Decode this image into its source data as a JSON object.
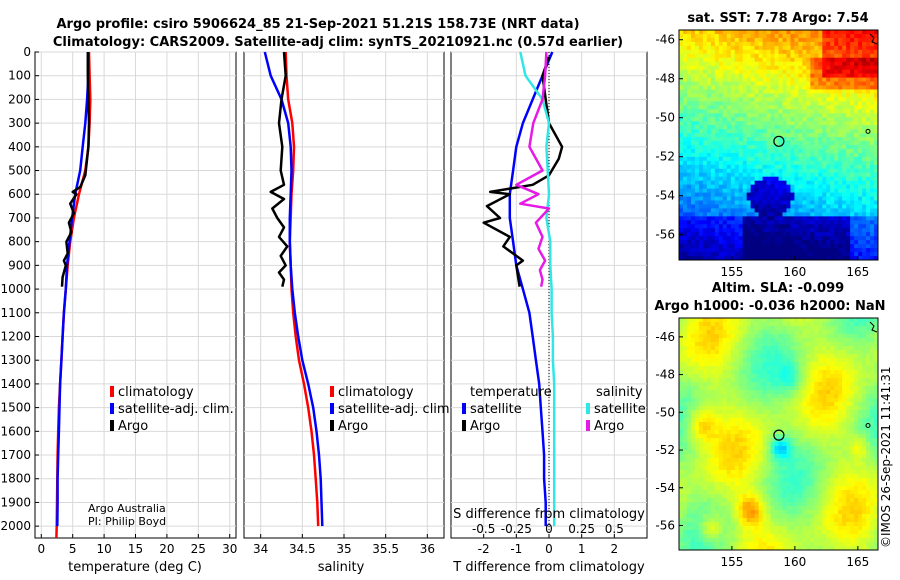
{
  "header": {
    "title_line1": "Argo profile: csiro 5906624_85 21-Sep-2021 51.21S 158.73E (NRT data)",
    "title_line2": "Climatology: CARS2009. Satellite-adj clim: synTS_20210921.nc (0.57d earlier)"
  },
  "credits": {
    "line1": "Argo Australia",
    "line2": "PI: Philip Boyd",
    "watermark": "©IMOS 26-Sep-2021 11:41:31"
  },
  "colors": {
    "climatology": "#ff0000",
    "satellite": "#0000ff",
    "argo": "#000000",
    "sat_salinity": "#33e6e6",
    "argo_salinity": "#e619e6"
  },
  "chart_data": [
    {
      "type": "line",
      "id": "temperature",
      "xlabel": "temperature (deg C)",
      "ylabel": "",
      "xlim": [
        -1,
        31
      ],
      "ylim": [
        2050,
        0
      ],
      "xticks": [
        0,
        5,
        10,
        15,
        20,
        25,
        30
      ],
      "yticks": [
        0,
        100,
        200,
        300,
        400,
        500,
        600,
        700,
        800,
        900,
        1000,
        1100,
        1200,
        1300,
        1400,
        1500,
        1600,
        1700,
        1800,
        1900,
        2000
      ],
      "grid": true,
      "legend": {
        "position": "lower-right",
        "entries": [
          "climatology",
          "satellite-adj. clim.",
          "Argo"
        ]
      },
      "series": [
        {
          "name": "climatology",
          "color": "#ff0000",
          "x": [
            7.6,
            7.7,
            7.8,
            7.7,
            7.5,
            7.0,
            6.0,
            5.2,
            4.6,
            4.2,
            3.9,
            3.6,
            3.4,
            3.2,
            3.0,
            2.8,
            2.7,
            2.6,
            2.55,
            2.5,
            2.45,
            2.4
          ],
          "y": [
            0,
            100,
            200,
            300,
            400,
            500,
            600,
            700,
            800,
            900,
            1000,
            1100,
            1200,
            1300,
            1400,
            1500,
            1600,
            1700,
            1800,
            1900,
            2000,
            2050
          ]
        },
        {
          "name": "satellite-adj. clim.",
          "color": "#0000ff",
          "x": [
            7.5,
            7.5,
            7.3,
            7.0,
            6.6,
            6.2,
            5.4,
            4.9,
            4.5,
            4.1,
            3.9,
            3.6,
            3.4,
            3.2,
            3.0,
            2.9,
            2.8,
            2.7,
            2.6,
            2.6,
            2.55
          ],
          "y": [
            0,
            100,
            200,
            300,
            400,
            500,
            600,
            700,
            800,
            900,
            1000,
            1100,
            1200,
            1300,
            1400,
            1500,
            1600,
            1700,
            1800,
            1900,
            2000
          ]
        },
        {
          "name": "Argo",
          "color": "#000000",
          "x": [
            7.4,
            7.4,
            7.5,
            7.6,
            7.5,
            7.3,
            7.0,
            6.2,
            5.0,
            5.6,
            4.6,
            5.2,
            4.4,
            4.8,
            4.0,
            4.2,
            3.6,
            3.9,
            3.4,
            3.3
          ],
          "y": [
            0,
            100,
            200,
            300,
            400,
            450,
            520,
            570,
            590,
            600,
            640,
            680,
            720,
            760,
            800,
            850,
            880,
            900,
            950,
            990
          ]
        }
      ]
    },
    {
      "type": "line",
      "id": "salinity",
      "xlabel": "salinity",
      "xlim": [
        33.8,
        36.2
      ],
      "ylim": [
        2050,
        0
      ],
      "xticks": [
        34,
        34.5,
        35,
        35.5,
        36
      ],
      "xtick_labels": [
        "34",
        "34.5",
        "35",
        "35.5",
        "36"
      ],
      "grid": true,
      "legend": {
        "position": "lower-right",
        "entries": [
          "climatology",
          "satellite-adj. clim.",
          "Argo"
        ]
      },
      "series": [
        {
          "name": "climatology",
          "color": "#ff0000",
          "x": [
            34.3,
            34.31,
            34.33,
            34.38,
            34.4,
            34.39,
            34.37,
            34.36,
            34.35,
            34.36,
            34.37,
            34.39,
            34.42,
            34.46,
            34.52,
            34.57,
            34.61,
            34.64,
            34.66,
            34.68,
            34.69
          ],
          "y": [
            0,
            100,
            200,
            300,
            400,
            500,
            600,
            700,
            800,
            900,
            1000,
            1100,
            1200,
            1300,
            1400,
            1500,
            1600,
            1700,
            1800,
            1900,
            2000
          ]
        },
        {
          "name": "satellite-adj. clim.",
          "color": "#0000ff",
          "x": [
            34.05,
            34.12,
            34.25,
            34.33,
            34.36,
            34.37,
            34.36,
            34.35,
            34.35,
            34.36,
            34.38,
            34.41,
            34.45,
            34.5,
            34.57,
            34.63,
            34.67,
            34.7,
            34.72,
            34.73,
            34.74
          ],
          "y": [
            0,
            100,
            200,
            300,
            400,
            500,
            600,
            700,
            800,
            900,
            1000,
            1100,
            1200,
            1300,
            1400,
            1500,
            1600,
            1700,
            1800,
            1900,
            2000
          ]
        },
        {
          "name": "Argo",
          "color": "#000000",
          "x": [
            34.28,
            34.3,
            34.25,
            34.22,
            34.26,
            34.24,
            34.28,
            34.12,
            34.28,
            34.14,
            34.2,
            34.28,
            34.22,
            34.32,
            34.24,
            34.3,
            34.22,
            34.28,
            34.26
          ],
          "y": [
            0,
            100,
            200,
            300,
            400,
            500,
            560,
            590,
            620,
            660,
            700,
            740,
            780,
            820,
            860,
            900,
            930,
            960,
            990
          ]
        }
      ]
    },
    {
      "type": "line",
      "id": "difference",
      "xlabel": "T difference from climatology",
      "xlabel_top": "S difference from climatology",
      "xlim": [
        -3,
        3
      ],
      "ylim": [
        2050,
        0
      ],
      "xticks": [
        -2,
        -1,
        0,
        1,
        2
      ],
      "xtick_labels": [
        "-2",
        "-1",
        "0",
        "1",
        "2"
      ],
      "s_ticks": [
        -0.5,
        -0.25,
        0,
        0.25,
        0.5
      ],
      "s_tick_labels": [
        "-0.5",
        "-0.25",
        "0",
        "0.25",
        "0.5"
      ],
      "grid": true,
      "legend": {
        "position": "lower",
        "temperature_title": "temperature",
        "salinity_title": "salinity",
        "temperature_entries": [
          "satellite",
          "Argo"
        ],
        "salinity_entries": [
          "satellite",
          "Argo"
        ]
      },
      "series": [
        {
          "name": "temperature satellite",
          "color": "#0000ff",
          "axis": "T",
          "x": [
            0.1,
            -0.2,
            -0.5,
            -0.8,
            -1.0,
            -1.1,
            -1.2,
            -1.2,
            -1.1,
            -1.0,
            -0.8,
            -0.6,
            -0.5,
            -0.4,
            -0.3,
            -0.25,
            -0.2,
            -0.15,
            -0.15,
            -0.1,
            -0.1
          ],
          "y": [
            0,
            100,
            200,
            300,
            400,
            500,
            600,
            700,
            800,
            900,
            1000,
            1100,
            1200,
            1300,
            1400,
            1500,
            1600,
            1700,
            1800,
            1900,
            2000
          ]
        },
        {
          "name": "temperature Argo",
          "color": "#000000",
          "axis": "T",
          "x": [
            0.0,
            -0.2,
            -0.1,
            0.0,
            0.4,
            0.3,
            0.0,
            -0.5,
            -1.8,
            -1.2,
            -1.9,
            -1.5,
            -2.0,
            -1.2,
            -1.4,
            -0.8,
            -1.0,
            -0.9
          ],
          "y": [
            20,
            100,
            200,
            300,
            400,
            450,
            520,
            560,
            590,
            600,
            650,
            700,
            720,
            780,
            820,
            880,
            900,
            990
          ]
        },
        {
          "name": "salinity satellite",
          "color": "#33e6e6",
          "axis": "S",
          "x": [
            -0.22,
            -0.18,
            -0.05,
            0.0,
            -0.02,
            -0.01,
            0.0,
            -0.02,
            0.01,
            0.01,
            0.02,
            0.02,
            0.03,
            0.03,
            0.04,
            0.04,
            0.04,
            0.04,
            0.04,
            0.04,
            0.04
          ],
          "y": [
            0,
            100,
            200,
            300,
            400,
            500,
            600,
            700,
            800,
            900,
            1000,
            1100,
            1200,
            1300,
            1400,
            1500,
            1600,
            1700,
            1800,
            1900,
            2000
          ]
        },
        {
          "name": "salinity Argo",
          "color": "#e619e6",
          "axis": "S",
          "x": [
            -0.02,
            -0.03,
            -0.05,
            -0.12,
            -0.15,
            -0.05,
            -0.25,
            -0.08,
            -0.22,
            0.0,
            -0.1,
            -0.05,
            -0.08,
            -0.03,
            -0.07,
            -0.05,
            -0.06
          ],
          "y": [
            0,
            100,
            200,
            300,
            400,
            500,
            560,
            600,
            640,
            660,
            720,
            780,
            830,
            880,
            920,
            960,
            990
          ]
        }
      ]
    },
    {
      "type": "heatmap",
      "id": "sst-map",
      "title": "sat. SST: 7.78 Argo: 7.54",
      "xlim": [
        150.8,
        166.6
      ],
      "ylim": [
        -57.3,
        -45.5
      ],
      "xticks": [
        155,
        160,
        165
      ],
      "yticks": [
        -46,
        -48,
        -50,
        -52,
        -54,
        -56
      ],
      "marker": {
        "lon": 158.73,
        "lat": -51.21
      }
    },
    {
      "type": "heatmap",
      "id": "sla-map",
      "title": "Altim. SLA: -0.099",
      "subtitle": "Argo h1000: -0.036 h2000: NaN",
      "xlim": [
        150.8,
        166.6
      ],
      "ylim": [
        -57.3,
        -45.0
      ],
      "xticks": [
        155,
        160,
        165
      ],
      "yticks": [
        -46,
        -48,
        -50,
        -52,
        -54,
        -56
      ],
      "marker": {
        "lon": 158.73,
        "lat": -51.21
      }
    }
  ]
}
